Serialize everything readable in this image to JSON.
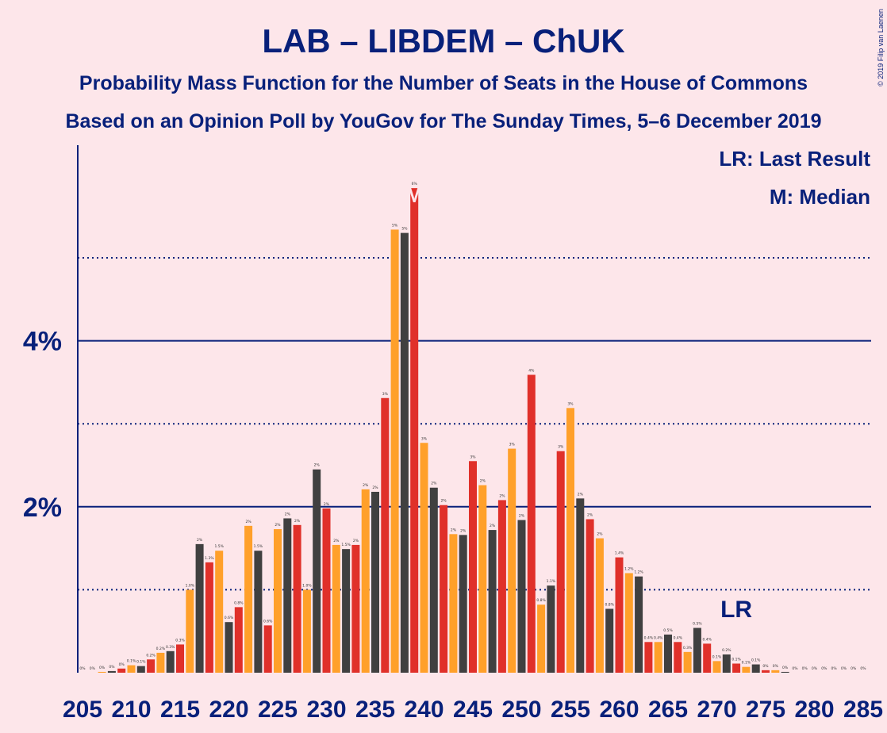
{
  "chart_data": {
    "type": "bar",
    "title": "LAB – LIBDEM – ChUK",
    "subtitle1": "Probability Mass Function for the Number of Seats in the House of Commons",
    "subtitle2": "Based on an Opinion Poll by YouGov for The Sunday Times, 5–6 December 2019",
    "copyright": "© 2019 Filip van Laenen",
    "legend": {
      "lr": "LR: Last Result",
      "m": "M: Median"
    },
    "ylim": [
      0,
      6.3
    ],
    "yticks": [
      {
        "value": 2,
        "label": "2%"
      },
      {
        "value": 4,
        "label": "4%"
      }
    ],
    "dotted_lines": [
      1,
      3,
      5
    ],
    "xtick_labels": [
      "205",
      "210",
      "215",
      "220",
      "225",
      "230",
      "235",
      "240",
      "245",
      "250",
      "255",
      "260",
      "265",
      "270",
      "275",
      "280",
      "285"
    ],
    "x_start": 205,
    "colors": {
      "dark": "#404040",
      "red": "#e0302a",
      "orange": "#ffa02a",
      "accent": "#08207a",
      "lr_line": "#08207a"
    },
    "color_cycle": [
      "dark",
      "red",
      "orange"
    ],
    "median_seat": 239,
    "median_marker": "M",
    "last_result_seat": 272,
    "last_result_marker": "LR",
    "values": [
      0.0,
      0.0,
      0.01,
      0.02,
      0.05,
      0.09,
      0.08,
      0.16,
      0.24,
      0.26,
      0.34,
      1.0,
      1.55,
      1.33,
      1.47,
      0.61,
      0.79,
      1.77,
      1.47,
      0.57,
      1.73,
      1.86,
      1.78,
      1.0,
      2.45,
      1.98,
      1.54,
      1.49,
      1.54,
      2.21,
      2.18,
      3.31,
      5.34,
      5.3,
      5.84,
      2.77,
      2.23,
      2.02,
      1.67,
      1.66,
      2.55,
      2.26,
      1.72,
      2.08,
      2.7,
      1.84,
      3.59,
      0.82,
      1.05,
      2.67,
      3.19,
      2.1,
      1.85,
      1.62,
      0.77,
      1.39,
      1.2,
      1.16,
      0.37,
      0.37,
      0.46,
      0.37,
      0.25,
      0.54,
      0.35,
      0.14,
      0.22,
      0.11,
      0.07,
      0.1,
      0.03,
      0.03,
      0.01,
      0.0,
      0.0,
      0.0,
      0.0,
      0.0,
      0.0,
      0.0,
      0.0
    ],
    "value_labels": [
      "0%",
      "0%",
      "0%",
      "0%",
      "0%",
      "0.1%",
      "0.1%",
      "0.2%",
      "0.2%",
      "0.3%",
      "0.3%",
      "1.0%",
      "2%",
      "1.3%",
      "1.5%",
      "0.6%",
      "0.8%",
      "2%",
      "1.5%",
      "0.6%",
      "2%",
      "2%",
      "2%",
      "1.0%",
      "2%",
      "2%",
      "2%",
      "1.5%",
      "2%",
      "2%",
      "2%",
      "3%",
      "5%",
      "5%",
      "6%",
      "3%",
      "2%",
      "2%",
      "2%",
      "2%",
      "3%",
      "2%",
      "2%",
      "2%",
      "3%",
      "2%",
      "4%",
      "0.8%",
      "1.1%",
      "3%",
      "3%",
      "2%",
      "2%",
      "2%",
      "0.8%",
      "1.4%",
      "1.2%",
      "1.2%",
      "0.4%",
      "0.4%",
      "0.5%",
      "0.4%",
      "0.3%",
      "0.5%",
      "0.4%",
      "0.1%",
      "0.2%",
      "0.1%",
      "0.1%",
      "0.1%",
      "0%",
      "0%",
      "0%",
      "0%",
      "0%",
      "0%",
      "0%",
      "0%",
      "0%",
      "0%",
      "0%"
    ]
  }
}
